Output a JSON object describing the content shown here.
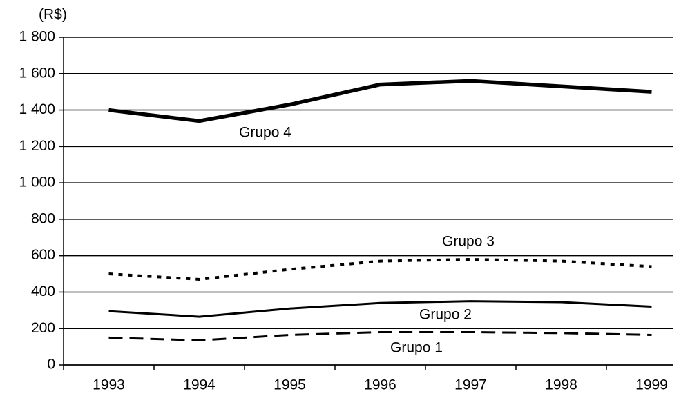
{
  "chart_data": {
    "type": "line",
    "y_axis_label": "(R$)",
    "categories": [
      "1993",
      "1994",
      "1995",
      "1996",
      "1997",
      "1998",
      "1999"
    ],
    "series": [
      {
        "name": "Grupo 1",
        "color": "#000000",
        "style": "dashed",
        "values": [
          150,
          135,
          165,
          180,
          180,
          175,
          165
        ]
      },
      {
        "name": "Grupo 2",
        "color": "#000000",
        "style": "solid",
        "values": [
          295,
          265,
          310,
          340,
          350,
          345,
          320
        ]
      },
      {
        "name": "Grupo 3",
        "color": "#000000",
        "style": "dotted",
        "values": [
          500,
          470,
          525,
          570,
          580,
          570,
          540
        ]
      },
      {
        "name": "Grupo 4",
        "color": "#000000",
        "style": "solid",
        "values": [
          1400,
          1340,
          1430,
          1540,
          1560,
          1530,
          1500
        ]
      }
    ],
    "ylim": [
      0,
      1800
    ],
    "yticks": [
      0,
      200,
      400,
      600,
      800,
      {
        "value": 1000,
        "label": "1 000"
      },
      {
        "value": 1200,
        "label": "1 200"
      },
      {
        "value": 1400,
        "label": "1 400"
      },
      {
        "value": 1600,
        "label": "1 600"
      },
      {
        "value": 1800,
        "label": "1 800"
      }
    ],
    "grid": true
  }
}
